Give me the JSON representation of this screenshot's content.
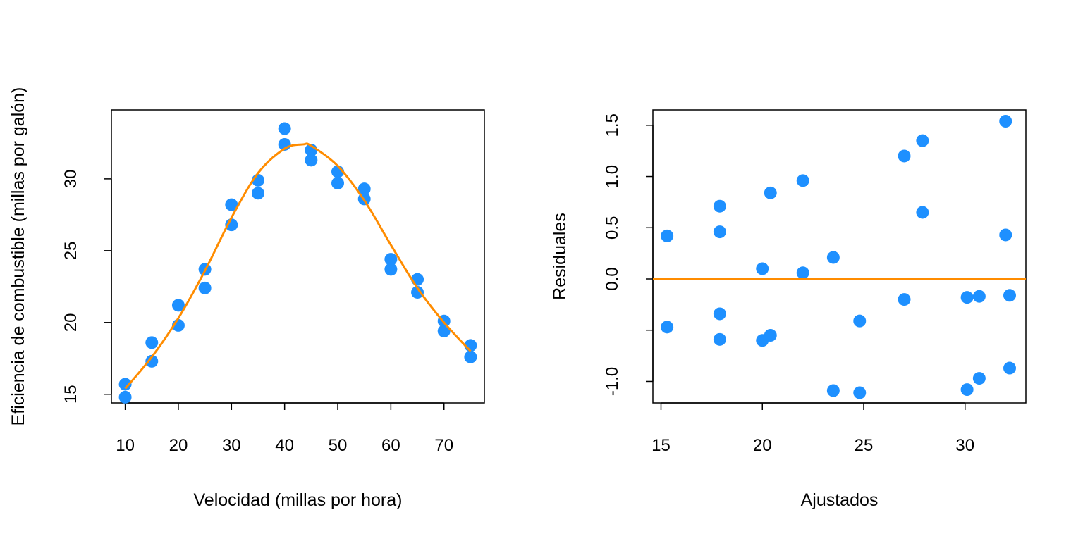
{
  "chart_data": [
    {
      "type": "scatter",
      "title": "",
      "xlabel": "Velocidad (millas por hora)",
      "ylabel": "Eficiencia de combustible (millas por galón)",
      "xlim": [
        7.4,
        77.6
      ],
      "ylim": [
        14.4,
        34.8
      ],
      "xticks": [
        10,
        20,
        30,
        40,
        50,
        60,
        70
      ],
      "yticks": [
        15,
        20,
        25,
        30
      ],
      "grid": false,
      "point_color": "#1E90FF",
      "line_color": "#FF8C00",
      "points": [
        {
          "x": 10,
          "y": 14.8
        },
        {
          "x": 10,
          "y": 15.7
        },
        {
          "x": 15,
          "y": 17.3
        },
        {
          "x": 15,
          "y": 18.6
        },
        {
          "x": 20,
          "y": 19.8
        },
        {
          "x": 20,
          "y": 21.2
        },
        {
          "x": 25,
          "y": 22.4
        },
        {
          "x": 25,
          "y": 23.7
        },
        {
          "x": 30,
          "y": 26.8
        },
        {
          "x": 30,
          "y": 28.2
        },
        {
          "x": 35,
          "y": 29.0
        },
        {
          "x": 35,
          "y": 29.9
        },
        {
          "x": 40,
          "y": 32.4
        },
        {
          "x": 40,
          "y": 33.5
        },
        {
          "x": 45,
          "y": 31.3
        },
        {
          "x": 45,
          "y": 32.0
        },
        {
          "x": 50,
          "y": 29.7
        },
        {
          "x": 50,
          "y": 30.5
        },
        {
          "x": 55,
          "y": 28.6
        },
        {
          "x": 55,
          "y": 29.3
        },
        {
          "x": 60,
          "y": 23.7
        },
        {
          "x": 60,
          "y": 24.4
        },
        {
          "x": 65,
          "y": 22.1
        },
        {
          "x": 65,
          "y": 23.0
        },
        {
          "x": 70,
          "y": 19.4
        },
        {
          "x": 70,
          "y": 20.1
        },
        {
          "x": 75,
          "y": 17.6
        },
        {
          "x": 75,
          "y": 18.4
        }
      ],
      "fit_curve": [
        {
          "x": 10,
          "y": 15.4
        },
        {
          "x": 15,
          "y": 17.6
        },
        {
          "x": 20,
          "y": 20.3
        },
        {
          "x": 25,
          "y": 23.6
        },
        {
          "x": 30,
          "y": 27.3
        },
        {
          "x": 35,
          "y": 30.4
        },
        {
          "x": 40,
          "y": 32.1
        },
        {
          "x": 43.5,
          "y": 32.4
        },
        {
          "x": 45,
          "y": 32.3
        },
        {
          "x": 50,
          "y": 30.9
        },
        {
          "x": 55,
          "y": 28.5
        },
        {
          "x": 60,
          "y": 25.4
        },
        {
          "x": 65,
          "y": 22.4
        },
        {
          "x": 70,
          "y": 20.0
        },
        {
          "x": 75,
          "y": 18.0
        }
      ]
    },
    {
      "type": "scatter",
      "title": "",
      "xlabel": "Ajustados",
      "ylabel": "Residuales",
      "xlim": [
        14.6,
        33.0
      ],
      "ylim": [
        -1.21,
        1.65
      ],
      "xticks": [
        15,
        20,
        25,
        30
      ],
      "yticks": [
        -1.0,
        -0.5,
        0.0,
        0.5,
        1.0,
        1.5
      ],
      "ytick_labels": [
        "-1.0",
        "",
        "0.0",
        "0.5",
        "1.0",
        "1.5"
      ],
      "grid": false,
      "point_color": "#1E90FF",
      "reference_line": {
        "y": 0,
        "color": "#FF8C00"
      },
      "points": [
        {
          "x": 15.3,
          "y": 0.42
        },
        {
          "x": 15.3,
          "y": -0.47
        },
        {
          "x": 17.9,
          "y": 0.71
        },
        {
          "x": 17.9,
          "y": 0.46
        },
        {
          "x": 17.9,
          "y": -0.34
        },
        {
          "x": 17.9,
          "y": -0.59
        },
        {
          "x": 20.0,
          "y": 0.1
        },
        {
          "x": 20.0,
          "y": -0.6
        },
        {
          "x": 20.4,
          "y": 0.84
        },
        {
          "x": 20.4,
          "y": -0.55
        },
        {
          "x": 22.0,
          "y": 0.96
        },
        {
          "x": 22.0,
          "y": 0.06
        },
        {
          "x": 23.5,
          "y": 0.21
        },
        {
          "x": 23.5,
          "y": -1.09
        },
        {
          "x": 24.8,
          "y": -0.41
        },
        {
          "x": 24.8,
          "y": -1.11
        },
        {
          "x": 27.0,
          "y": 1.2
        },
        {
          "x": 27.0,
          "y": -0.2
        },
        {
          "x": 27.9,
          "y": 1.35
        },
        {
          "x": 27.9,
          "y": 0.65
        },
        {
          "x": 30.1,
          "y": -0.18
        },
        {
          "x": 30.1,
          "y": -1.08
        },
        {
          "x": 30.7,
          "y": -0.17
        },
        {
          "x": 30.7,
          "y": -0.97
        },
        {
          "x": 32.0,
          "y": 1.54
        },
        {
          "x": 32.0,
          "y": 0.43
        },
        {
          "x": 32.2,
          "y": -0.16
        },
        {
          "x": 32.2,
          "y": -0.87
        }
      ]
    }
  ]
}
